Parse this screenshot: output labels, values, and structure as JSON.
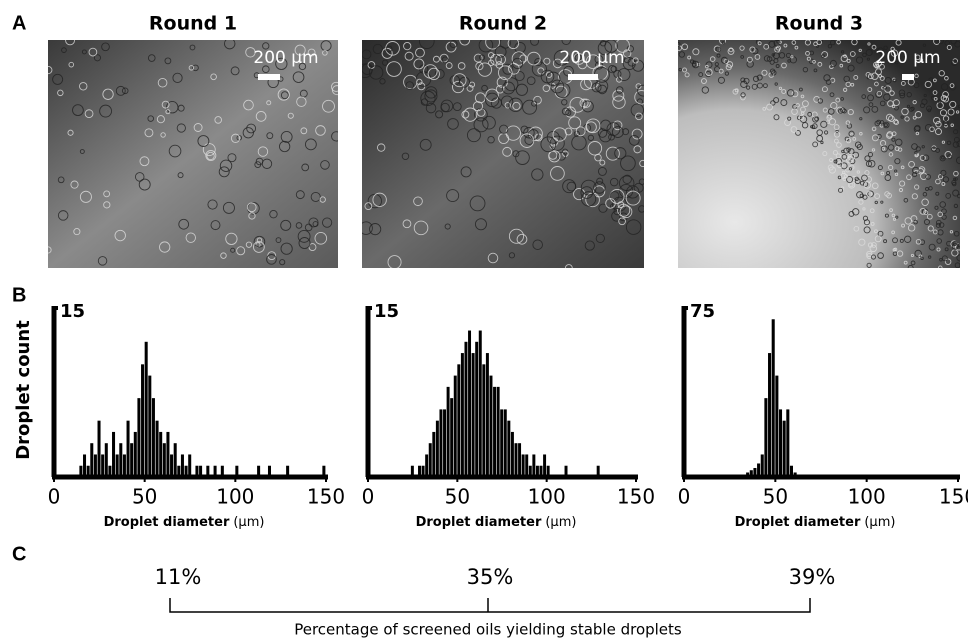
{
  "panel_labels": [
    "A",
    "B",
    "C"
  ],
  "images": [
    {
      "title": "Round 1",
      "scale_bar": "200 µm"
    },
    {
      "title": "Round 2",
      "scale_bar": "200 µm"
    },
    {
      "title": "Round 3",
      "scale_bar": "200 µm"
    }
  ],
  "chart_data": [
    {
      "type": "histogram",
      "color": "#000000",
      "ylabel": "Droplet count",
      "xlabel": "Droplet diameter",
      "xlabel_unit": "(µm)",
      "xlim": [
        0,
        150
      ],
      "xticks": [
        0,
        50,
        100,
        150
      ],
      "ylim": [
        0,
        15
      ],
      "yticks": [
        15
      ],
      "bins": [
        14,
        16,
        18,
        20,
        22,
        24,
        26,
        28,
        30,
        32,
        34,
        36,
        38,
        40,
        42,
        44,
        46,
        48,
        50,
        52,
        54,
        56,
        58,
        60,
        62,
        64,
        66,
        68,
        70,
        72,
        74,
        76,
        78,
        80,
        82,
        84,
        86,
        88,
        90,
        92,
        94,
        96,
        98,
        100,
        102,
        104,
        106,
        108,
        110,
        112,
        114,
        116,
        118,
        120,
        122,
        124,
        126,
        128,
        130,
        132,
        134,
        136,
        138,
        140,
        142,
        144,
        146,
        148,
        150
      ],
      "counts": [
        1,
        2,
        1,
        3,
        2,
        5,
        2,
        3,
        1,
        4,
        2,
        3,
        2,
        5,
        3,
        4,
        7,
        10,
        12,
        9,
        7,
        5,
        4,
        3,
        4,
        2,
        3,
        1,
        2,
        1,
        2,
        0,
        1,
        1,
        0,
        1,
        0,
        1,
        0,
        1,
        0,
        0,
        0,
        1,
        0,
        0,
        0,
        0,
        0,
        1,
        0,
        0,
        1,
        0,
        0,
        0,
        0,
        1,
        0,
        0,
        0,
        0,
        0,
        0,
        0,
        0,
        0,
        1
      ]
    },
    {
      "type": "histogram",
      "color": "#000000",
      "xlabel": "Droplet diameter",
      "xlabel_unit": "(µm)",
      "xlim": [
        0,
        150
      ],
      "xticks": [
        0,
        50,
        100,
        150
      ],
      "ylim": [
        0,
        15
      ],
      "yticks": [
        15
      ],
      "bins": [
        24,
        26,
        28,
        30,
        32,
        34,
        36,
        38,
        40,
        42,
        44,
        46,
        48,
        50,
        52,
        54,
        56,
        58,
        60,
        62,
        64,
        66,
        68,
        70,
        72,
        74,
        76,
        78,
        80,
        82,
        84,
        86,
        88,
        90,
        92,
        94,
        96,
        98,
        100,
        102,
        104,
        106,
        108,
        110,
        112,
        114,
        116,
        118,
        120,
        122,
        124,
        126,
        128,
        130
      ],
      "counts": [
        1,
        0,
        1,
        1,
        2,
        3,
        4,
        5,
        6,
        6,
        8,
        7,
        9,
        10,
        11,
        12,
        13,
        11,
        12,
        13,
        10,
        11,
        9,
        8,
        8,
        6,
        6,
        5,
        4,
        3,
        3,
        2,
        2,
        1,
        2,
        1,
        1,
        2,
        1,
        0,
        0,
        0,
        0,
        1,
        0,
        0,
        0,
        0,
        0,
        0,
        0,
        0,
        1
      ]
    },
    {
      "type": "histogram",
      "color": "#000000",
      "xlabel": "Droplet diameter",
      "xlabel_unit": "(µm)",
      "xlim": [
        0,
        150
      ],
      "xticks": [
        0,
        50,
        100,
        150
      ],
      "ylim": [
        0,
        75
      ],
      "yticks": [
        75
      ],
      "bins": [
        30,
        32,
        34,
        36,
        38,
        40,
        42,
        44,
        46,
        48,
        50,
        52,
        54,
        56,
        58,
        60,
        62,
        64,
        66,
        68,
        70,
        72,
        74,
        76,
        78,
        80,
        82,
        84,
        86,
        88,
        90,
        92,
        94,
        96,
        98,
        100,
        102
      ],
      "counts": [
        1,
        1,
        2,
        3,
        4,
        6,
        10,
        35,
        55,
        70,
        45,
        30,
        25,
        30,
        5,
        2,
        1,
        1,
        0,
        1,
        0,
        0,
        0,
        0,
        0,
        0,
        0,
        0,
        0,
        0,
        0,
        0,
        0,
        0,
        0,
        1
      ]
    }
  ],
  "summary": {
    "percentages": [
      "11%",
      "35%",
      "39%"
    ],
    "caption": "Percentage of screened oils yielding stable droplets"
  }
}
